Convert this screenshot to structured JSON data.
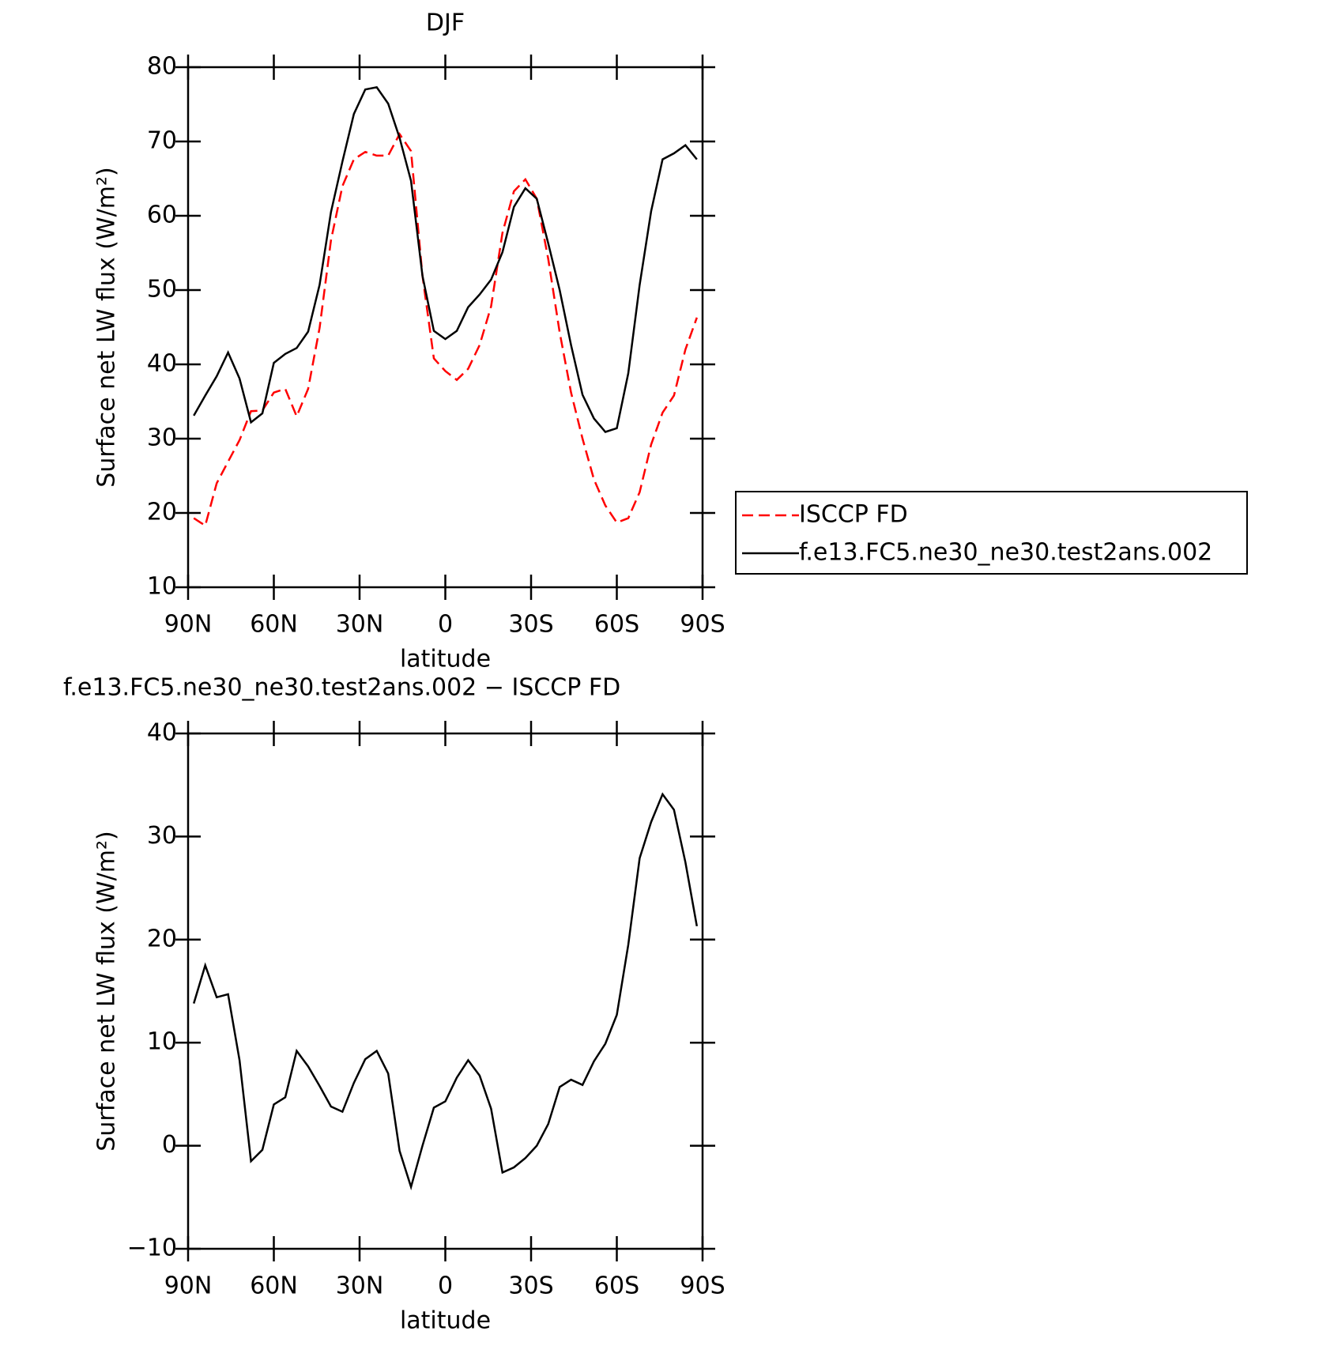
{
  "chart_data": [
    {
      "type": "line",
      "title": "DJF",
      "x_label": "latitude",
      "y_label": "Surface net LW flux (W/m²)",
      "x": [
        88,
        84,
        80,
        76,
        72,
        68,
        64,
        60,
        56,
        52,
        48,
        44,
        40,
        36,
        32,
        28,
        24,
        20,
        16,
        12,
        8,
        4,
        0,
        -4,
        -8,
        -12,
        -16,
        -20,
        -24,
        -28,
        -32,
        -36,
        -40,
        -44,
        -48,
        -52,
        -56,
        -60,
        -64,
        -68,
        -72,
        -76,
        -80,
        -84,
        -88
      ],
      "xlim": [
        90,
        -90
      ],
      "xticks": [
        {
          "value": 90,
          "label": "90N"
        },
        {
          "value": 60,
          "label": "60N"
        },
        {
          "value": 30,
          "label": "30N"
        },
        0,
        {
          "value": -30,
          "label": "30S"
        },
        {
          "value": -60,
          "label": "60S"
        },
        {
          "value": -90,
          "label": "90S"
        }
      ],
      "ylim": [
        10,
        80
      ],
      "yticks": [
        10,
        20,
        30,
        40,
        50,
        60,
        70,
        80
      ],
      "legend": "right",
      "series": [
        {
          "name": "ISCCP FD",
          "color": "#ff0000",
          "line_style": "dashed",
          "values": [
            19.3,
            18.3,
            24.0,
            26.9,
            29.8,
            33.7,
            33.8,
            36.2,
            36.7,
            33.0,
            36.7,
            44.9,
            56.7,
            64.0,
            67.6,
            68.6,
            68.1,
            68.1,
            71.0,
            68.7,
            51.9,
            40.8,
            39.1,
            37.9,
            39.4,
            42.6,
            47.8,
            57.7,
            63.3,
            64.9,
            62.3,
            54.2,
            44.3,
            36.2,
            30.0,
            24.5,
            21.0,
            18.7,
            19.3,
            22.8,
            29.2,
            33.5,
            35.8,
            42.0,
            46.3
          ]
        },
        {
          "name": "f.e13.FC5.ne30_ne30.test2ans.002",
          "color": "#000000",
          "line_style": "solid",
          "values": [
            33.1,
            35.8,
            38.4,
            41.6,
            38.1,
            32.2,
            33.4,
            40.2,
            41.4,
            42.2,
            44.4,
            50.7,
            60.5,
            67.3,
            73.7,
            77.0,
            77.3,
            75.1,
            70.5,
            64.7,
            51.9,
            44.5,
            43.4,
            44.5,
            47.7,
            49.4,
            51.4,
            55.1,
            61.2,
            63.7,
            62.3,
            56.3,
            50.0,
            42.6,
            35.9,
            32.7,
            30.9,
            31.4,
            38.8,
            50.7,
            60.6,
            67.6,
            68.4,
            69.5,
            67.6
          ]
        }
      ]
    },
    {
      "type": "line",
      "title": "f.e13.FC5.ne30_ne30.test2ans.002 − ISCCP FD",
      "x_label": "latitude",
      "y_label": "Surface net LW flux (W/m²)",
      "x": [
        88,
        84,
        80,
        76,
        72,
        68,
        64,
        60,
        56,
        52,
        48,
        44,
        40,
        36,
        32,
        28,
        24,
        20,
        16,
        12,
        8,
        4,
        0,
        -4,
        -8,
        -12,
        -16,
        -20,
        -24,
        -28,
        -32,
        -36,
        -40,
        -44,
        -48,
        -52,
        -56,
        -60,
        -64,
        -68,
        -72,
        -76,
        -80,
        -84,
        -88
      ],
      "xlim": [
        90,
        -90
      ],
      "xticks": [
        {
          "value": 90,
          "label": "90N"
        },
        {
          "value": 60,
          "label": "60N"
        },
        {
          "value": 30,
          "label": "30N"
        },
        0,
        {
          "value": -30,
          "label": "30S"
        },
        {
          "value": -60,
          "label": "60S"
        },
        {
          "value": -90,
          "label": "90S"
        }
      ],
      "ylim": [
        -10,
        40
      ],
      "yticks": [
        {
          "value": -10,
          "label": "−10"
        },
        0,
        10,
        20,
        30,
        40
      ],
      "series": [
        {
          "color": "#000000",
          "line_style": "solid",
          "values": [
            13.8,
            17.5,
            14.4,
            14.7,
            8.3,
            -1.5,
            -0.4,
            4.0,
            4.7,
            9.2,
            7.7,
            5.8,
            3.8,
            3.3,
            6.1,
            8.4,
            9.2,
            7.0,
            -0.5,
            -4.0,
            0.0,
            3.7,
            4.3,
            6.6,
            8.3,
            6.8,
            3.6,
            -2.6,
            -2.1,
            -1.2,
            0.0,
            2.1,
            5.7,
            6.4,
            5.9,
            8.2,
            9.9,
            12.7,
            19.5,
            27.9,
            31.4,
            34.1,
            32.6,
            27.5,
            21.3
          ]
        }
      ]
    }
  ]
}
